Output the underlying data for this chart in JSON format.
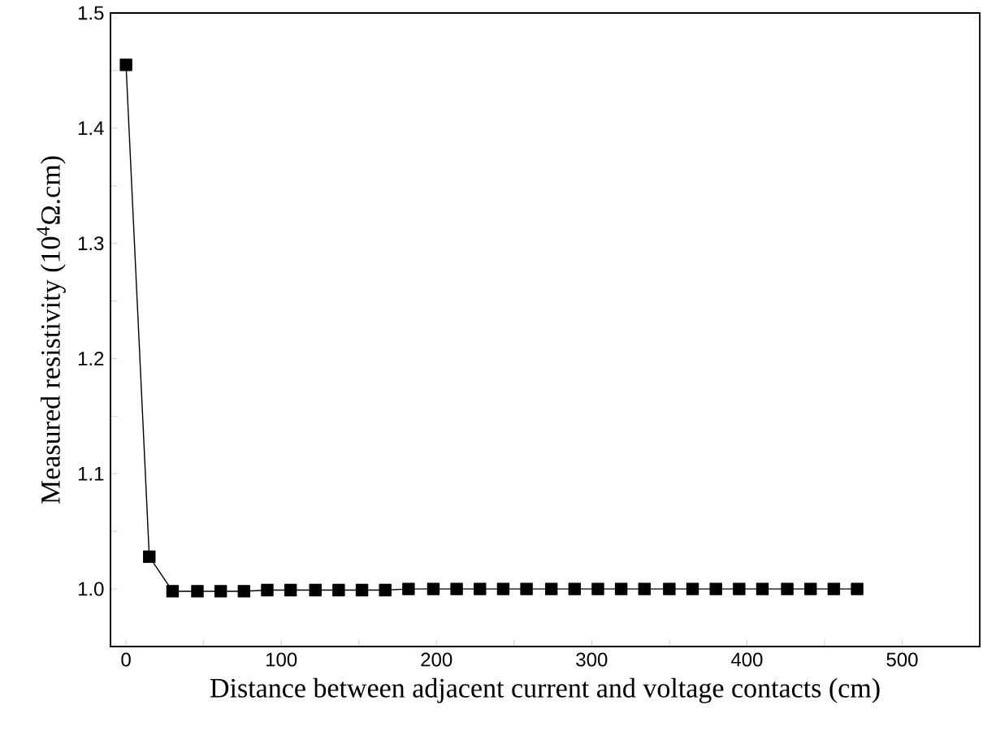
{
  "chart_data": {
    "type": "line",
    "xlabel": "Distance between adjacent current and voltage contacts (cm)",
    "ylabel": "Measured resistivity (10$^{4}$Ω.cm)",
    "x": [
      0,
      15,
      30,
      46,
      61,
      76,
      91,
      106,
      122,
      137,
      152,
      167,
      182,
      198,
      213,
      228,
      243,
      258,
      274,
      289,
      304,
      319,
      334,
      350,
      365,
      380,
      395,
      410,
      426,
      441,
      456,
      471
    ],
    "series": [
      {
        "color": "#000000",
        "values": [
          1.455,
          1.028,
          0.998,
          0.998,
          0.998,
          0.998,
          0.999,
          0.999,
          0.999,
          0.999,
          0.999,
          0.999,
          1.0,
          1.0,
          1.0,
          1.0,
          1.0,
          1.0,
          1.0,
          1.0,
          1.0,
          1.0,
          1.0,
          1.0,
          1.0,
          1.0,
          1.0,
          1.0,
          1.0,
          1.0,
          1.0,
          1.0
        ]
      }
    ],
    "xlim": [
      -10,
      550
    ],
    "ylim": [
      0.95,
      1.5
    ],
    "xticks": [
      0,
      {
        "value": 50,
        "label": null
      },
      100,
      {
        "value": 150,
        "label": null
      },
      200,
      {
        "value": 250,
        "label": null
      },
      300,
      {
        "value": 350,
        "label": null
      },
      400,
      {
        "value": 450,
        "label": null
      },
      500
    ],
    "yticks": [
      {
        "value": 0.95,
        "label": null
      },
      {
        "value": 1.0,
        "label": "1.0"
      },
      {
        "value": 1.05,
        "label": null
      },
      1.1,
      {
        "value": 1.15,
        "label": null
      },
      1.2,
      {
        "value": 1.25,
        "label": null
      },
      1.3,
      {
        "value": 1.35,
        "label": null
      },
      1.4,
      {
        "value": 1.45,
        "label": null
      },
      1.5
    ],
    "marker": "square",
    "line_style": "solid"
  }
}
